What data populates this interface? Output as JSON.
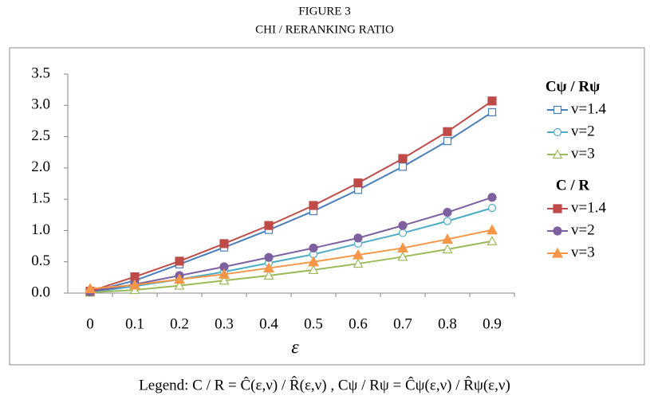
{
  "chart_data": {
    "type": "line",
    "title": "FIGURE 3",
    "subtitle": "CHI / RERANKING RATIO",
    "x_label": "ε",
    "caption": "Legend: C / R = Ĉ(ε,ν) / R̂(ε,ν) , Cψ / Rψ = Ĉψ(ε,ν) / R̂ψ(ε,ν)",
    "categories": [
      "0",
      "0.1",
      "0.2",
      "0.3",
      "0.4",
      "0.5",
      "0.6",
      "0.7",
      "0.8",
      "0.9"
    ],
    "ylim": [
      0,
      3.5
    ],
    "yticks": [
      {
        "value": 0,
        "label": "0.0"
      },
      {
        "value": 0.5,
        "label": "0.5"
      },
      {
        "value": 1,
        "label": "1.0"
      },
      {
        "value": 1.5,
        "label": "1.5"
      },
      {
        "value": 2,
        "label": "2.0"
      },
      {
        "value": 2.5,
        "label": "2.5"
      },
      {
        "value": 3,
        "label": "3.0"
      },
      {
        "value": 3.5,
        "label": "3.5"
      }
    ],
    "grid": false,
    "legend": "right",
    "series_groups": [
      {
        "name": "Cψ / Rψ",
        "series": [
          {
            "name": "v=1.4",
            "color": "#4a7ebb",
            "marker": "square",
            "filled": false,
            "values": [
              0.02,
              0.2,
              0.46,
              0.73,
              1.01,
              1.31,
              1.65,
              2.02,
              2.43,
              2.89
            ]
          },
          {
            "name": "v=2",
            "color": "#4bacc6",
            "marker": "circle",
            "filled": false,
            "values": [
              0.01,
              0.11,
              0.22,
              0.34,
              0.48,
              0.62,
              0.79,
              0.96,
              1.15,
              1.36
            ]
          },
          {
            "name": "v=3",
            "color": "#9bbb59",
            "marker": "triangle",
            "filled": false,
            "values": [
              0.01,
              0.05,
              0.12,
              0.2,
              0.28,
              0.37,
              0.47,
              0.58,
              0.7,
              0.83
            ]
          }
        ]
      },
      {
        "name": "C / R",
        "series": [
          {
            "name": "v=1.4",
            "color": "#be4b48",
            "marker": "square",
            "filled": true,
            "values": [
              0.03,
              0.26,
              0.51,
              0.79,
              1.08,
              1.4,
              1.76,
              2.15,
              2.58,
              3.07
            ]
          },
          {
            "name": "v=2",
            "color": "#7d60a0",
            "marker": "circle",
            "filled": true,
            "values": [
              0.02,
              0.14,
              0.28,
              0.42,
              0.57,
              0.72,
              0.88,
              1.08,
              1.29,
              1.53
            ]
          },
          {
            "name": "v=3",
            "color": "#f79646",
            "marker": "triangle",
            "filled": true,
            "values": [
              0.07,
              0.13,
              0.22,
              0.3,
              0.4,
              0.5,
              0.61,
              0.72,
              0.86,
              1.01
            ]
          }
        ]
      }
    ]
  }
}
